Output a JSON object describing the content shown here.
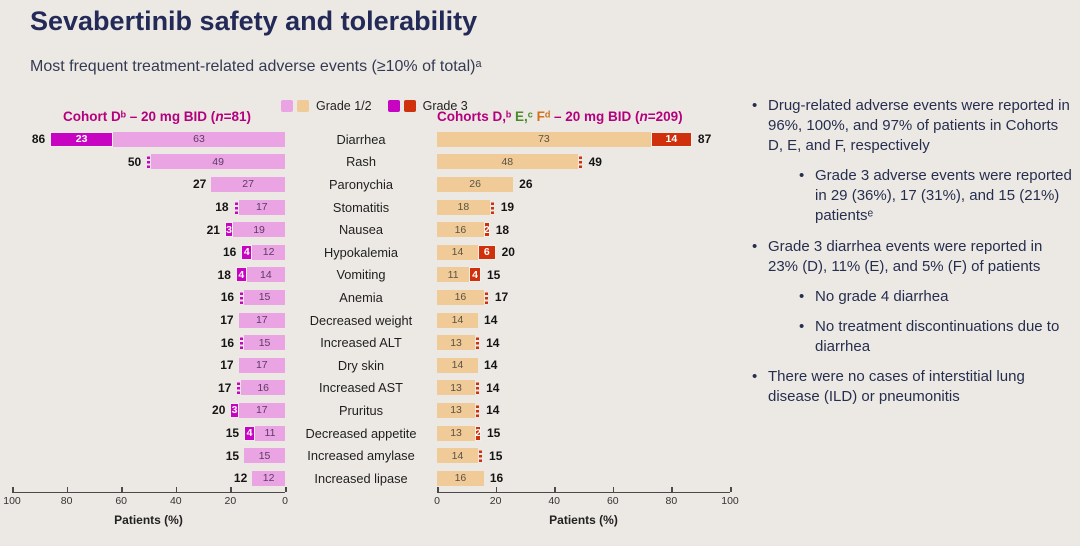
{
  "title": "Sevabertinib safety and tolerability",
  "subtitle": "Most frequent treatment-related adverse events (≥10% of total)ᵃ",
  "colors": {
    "grade12_left": "#eaa4e4",
    "grade3_left": "#c704c2",
    "grade12_right": "#f0cb97",
    "grade3_right": "#d0310d",
    "grade12_left_text": "#5c3a63",
    "grade12_right_text": "#5a5244",
    "grade3_text": "#ffffff",
    "magenta_header": "#b5007d",
    "green_header": "#4a8a28",
    "orange_header": "#d2701c",
    "title_navy": "#232a57"
  },
  "legend": {
    "items": [
      {
        "label": "Grade 1/2",
        "swatches": [
          "#eaa4e4",
          "#f0cb97"
        ]
      },
      {
        "label": "Grade 3",
        "swatches": [
          "#c704c2",
          "#d0310d"
        ]
      }
    ]
  },
  "chart_data": {
    "type": "bar",
    "orientation": "horizontal-mirrored-stacked",
    "xlabel": "Patients (%)",
    "xlim": [
      0,
      100
    ],
    "ticks": [
      0,
      20,
      40,
      60,
      80,
      100
    ],
    "left_title_segments": [
      {
        "t": "Cohort Dᵇ – 20 mg BID (",
        "c": "#b5007d"
      },
      {
        "t": "n",
        "c": "#b5007d",
        "i": true
      },
      {
        "t": "=81)",
        "c": "#b5007d"
      }
    ],
    "right_title_segments": [
      {
        "t": "Cohorts D,ᵇ ",
        "c": "#b5007d"
      },
      {
        "t": "E,ᶜ ",
        "c": "#4a8a28"
      },
      {
        "t": "Fᵈ ",
        "c": "#d2701c"
      },
      {
        "t": "– 20 mg BID (",
        "c": "#b5007d"
      },
      {
        "t": "n",
        "c": "#b5007d",
        "i": true
      },
      {
        "t": "=209)",
        "c": "#b5007d"
      }
    ],
    "categories": [
      "Diarrhea",
      "Rash",
      "Paronychia",
      "Stomatitis",
      "Nausea",
      "Hypokalemia",
      "Vomiting",
      "Anemia",
      "Decreased weight",
      "Increased ALT",
      "Dry skin",
      "Increased AST",
      "Pruritus",
      "Decreased appetite",
      "Increased amylase",
      "Increased lipase"
    ],
    "series": [
      {
        "name": "Cohort D – Grade 3",
        "values": [
          23,
          1,
          0,
          1,
          3,
          4,
          4,
          1,
          0,
          1,
          0,
          1,
          3,
          4,
          0,
          0
        ]
      },
      {
        "name": "Cohort D – Grade 1/2",
        "values": [
          63,
          49,
          27,
          17,
          19,
          12,
          14,
          15,
          17,
          15,
          17,
          16,
          17,
          11,
          15,
          12
        ]
      },
      {
        "name": "Cohort D – Total",
        "values": [
          86,
          50,
          27,
          18,
          21,
          16,
          18,
          16,
          17,
          16,
          17,
          17,
          20,
          15,
          15,
          12
        ]
      },
      {
        "name": "Cohorts DEF – Grade 1/2",
        "values": [
          73,
          48,
          26,
          18,
          16,
          14,
          11,
          16,
          14,
          13,
          14,
          13,
          13,
          13,
          14,
          16
        ]
      },
      {
        "name": "Cohorts DEF – Grade 3",
        "values": [
          14,
          1,
          0,
          1,
          2,
          6,
          4,
          1,
          0,
          1,
          0,
          1,
          1,
          2,
          1,
          0
        ]
      },
      {
        "name": "Cohorts DEF – Total",
        "values": [
          87,
          49,
          26,
          19,
          18,
          20,
          15,
          17,
          14,
          14,
          14,
          14,
          14,
          15,
          15,
          16
        ]
      }
    ],
    "legend_entries": [
      "Grade 1/2",
      "Grade 3"
    ]
  },
  "bullets": [
    {
      "level": 1,
      "text": "Drug-related adverse events were reported in 96%, 100%, and 97% of patients in Cohorts D, E, and F, respectively"
    },
    {
      "level": 2,
      "text": "Grade 3 adverse events were reported in 29 (36%), 17 (31%), and 15 (21%) patientsᵉ"
    },
    {
      "level": 1,
      "text": "Grade 3 diarrhea events were reported in 23% (D), 11% (E), and 5% (F) of patients"
    },
    {
      "level": 2,
      "text": "No grade 4 diarrhea"
    },
    {
      "level": 2,
      "text": "No treatment discontinuations due to diarrhea"
    },
    {
      "level": 1,
      "text": "There were no cases of interstitial lung disease (ILD) or pneumonitis"
    }
  ]
}
